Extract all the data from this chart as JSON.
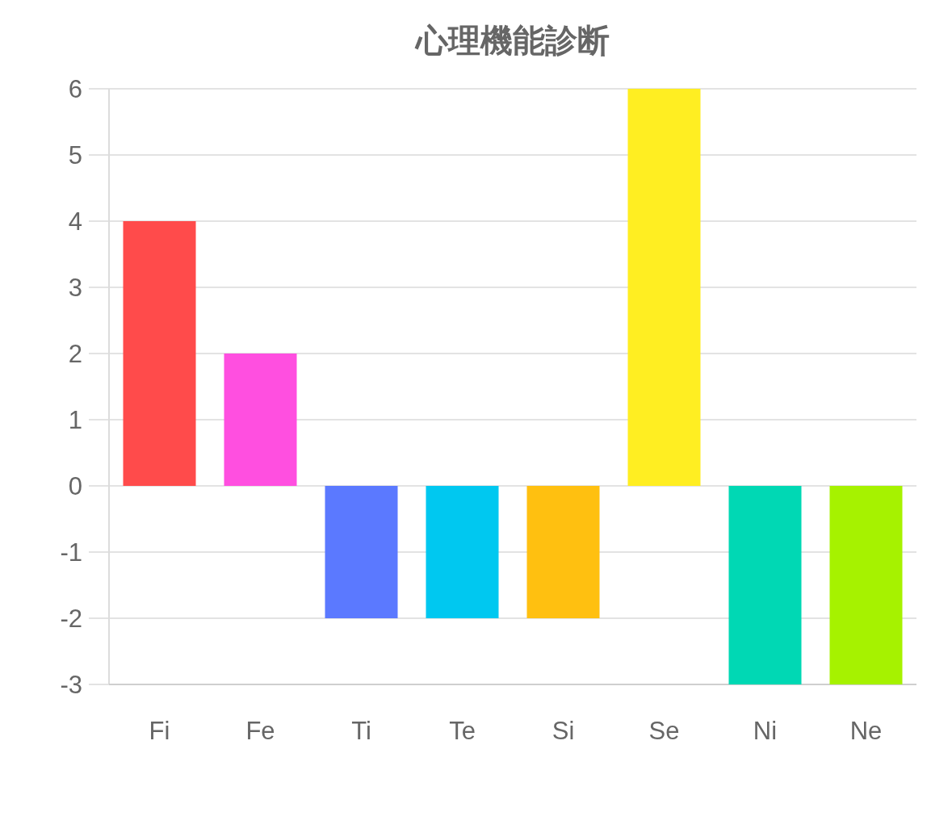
{
  "chart_data": {
    "type": "bar",
    "title": "心理機能診断",
    "categories": [
      "Fi",
      "Fe",
      "Ti",
      "Te",
      "Si",
      "Se",
      "Ni",
      "Ne"
    ],
    "values": [
      4,
      2,
      -2,
      -2,
      -2,
      6,
      -3,
      -3
    ],
    "colors": [
      "#ff4b4b",
      "#ff4fe0",
      "#5b79ff",
      "#00c8f0",
      "#ffc010",
      "#ffee22",
      "#00d8b4",
      "#a6f200"
    ],
    "ylim": [
      -3,
      6
    ],
    "yticks": [
      -3,
      -2,
      -1,
      0,
      1,
      2,
      3,
      4,
      5,
      6
    ],
    "grid": "y"
  }
}
